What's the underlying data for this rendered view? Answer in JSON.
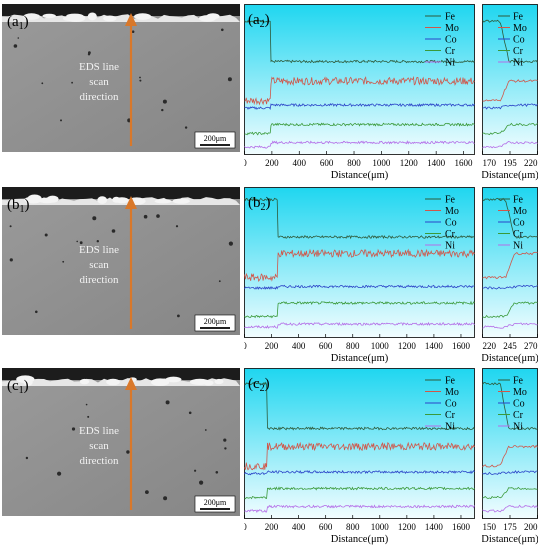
{
  "figure": {
    "colors": {
      "plot_bg_top": "#1fd6f0",
      "plot_bg_bottom": "#f2fdff",
      "sem_gray": "#8f8f8f",
      "arrow": "#d9782a",
      "Fe": "#2e5a3a",
      "Mo": "#d0574a",
      "Co": "#2b44c8",
      "Cr": "#3a9a3a",
      "Ni": "#b46ee8"
    },
    "legend": [
      "Fe",
      "Mo",
      "Co",
      "Cr",
      "Ni"
    ],
    "sem_text": [
      "EDS line",
      "scan",
      "direction"
    ],
    "scalebar_text": "200μm",
    "rows": [
      {
        "sem_label": "a",
        "sem_sub": "1",
        "plot_label": "a",
        "plot_sub": "2",
        "xlabel": "Distance(μm)",
        "main_ticks": [
          "0",
          "200",
          "400",
          "600",
          "800",
          "1000",
          "1200",
          "1400",
          "1600"
        ],
        "zoom_ticks": [
          "170",
          "195",
          "220"
        ]
      },
      {
        "sem_label": "b",
        "sem_sub": "1",
        "plot_label": "b",
        "plot_sub": "2",
        "xlabel": "Distance(μm)",
        "main_ticks": [
          "0",
          "200",
          "400",
          "600",
          "800",
          "1000",
          "1200",
          "1400",
          "1600"
        ],
        "zoom_ticks": [
          "220",
          "245",
          "270"
        ]
      },
      {
        "sem_label": "c",
        "sem_sub": "1",
        "plot_label": "c",
        "plot_sub": "2",
        "xlabel": "Distance(μm)",
        "main_ticks": [
          "0",
          "200",
          "400",
          "600",
          "800",
          "1000",
          "1200",
          "1400",
          "1600"
        ],
        "zoom_ticks": [
          "150",
          "175",
          "200"
        ]
      }
    ]
  },
  "chart_data": [
    {
      "type": "line",
      "panel": "a2",
      "x_range": [
        0,
        1680
      ],
      "step_x": 190,
      "series": [
        {
          "name": "Fe",
          "before": 0.89,
          "after": 0.62
        },
        {
          "name": "Mo",
          "before": 0.36,
          "after": 0.49
        },
        {
          "name": "Co",
          "before": 0.31,
          "after": 0.33
        },
        {
          "name": "Cr",
          "before": 0.14,
          "after": 0.2
        },
        {
          "name": "Ni",
          "before": 0.05,
          "after": 0.08
        }
      ]
    },
    {
      "type": "line",
      "panel": "a2-zoom",
      "x_range": [
        170,
        220
      ],
      "step_x": 190,
      "series": [
        {
          "name": "Fe",
          "before": 0.89,
          "after": 0.62
        },
        {
          "name": "Mo",
          "before": 0.36,
          "after": 0.49
        },
        {
          "name": "Co",
          "before": 0.31,
          "after": 0.33
        },
        {
          "name": "Cr",
          "before": 0.14,
          "after": 0.2
        },
        {
          "name": "Ni",
          "before": 0.05,
          "after": 0.08
        }
      ]
    },
    {
      "type": "line",
      "panel": "b2",
      "x_range": [
        0,
        1700
      ],
      "step_x": 245,
      "series": [
        {
          "name": "Fe",
          "before": 0.92,
          "after": 0.67
        },
        {
          "name": "Mo",
          "before": 0.4,
          "after": 0.56
        },
        {
          "name": "Co",
          "before": 0.33,
          "after": 0.34
        },
        {
          "name": "Cr",
          "before": 0.14,
          "after": 0.23
        },
        {
          "name": "Ni",
          "before": 0.07,
          "after": 0.09
        }
      ]
    },
    {
      "type": "line",
      "panel": "b2-zoom",
      "x_range": [
        220,
        270
      ],
      "step_x": 245,
      "series": [
        {
          "name": "Fe",
          "before": 0.92,
          "after": 0.67
        },
        {
          "name": "Mo",
          "before": 0.4,
          "after": 0.56
        },
        {
          "name": "Co",
          "before": 0.33,
          "after": 0.34
        },
        {
          "name": "Cr",
          "before": 0.14,
          "after": 0.23
        },
        {
          "name": "Ni",
          "before": 0.07,
          "after": 0.09
        }
      ]
    },
    {
      "type": "line",
      "panel": "c2",
      "x_range": [
        0,
        1700
      ],
      "step_x": 170,
      "series": [
        {
          "name": "Fe",
          "before": 0.9,
          "after": 0.6
        },
        {
          "name": "Mo",
          "before": 0.35,
          "after": 0.48
        },
        {
          "name": "Co",
          "before": 0.3,
          "after": 0.31
        },
        {
          "name": "Cr",
          "before": 0.14,
          "after": 0.2
        },
        {
          "name": "Ni",
          "before": 0.05,
          "after": 0.08
        }
      ]
    },
    {
      "type": "line",
      "panel": "c2-zoom",
      "x_range": [
        150,
        200
      ],
      "step_x": 170,
      "series": [
        {
          "name": "Fe",
          "before": 0.9,
          "after": 0.6
        },
        {
          "name": "Mo",
          "before": 0.35,
          "after": 0.48
        },
        {
          "name": "Co",
          "before": 0.3,
          "after": 0.31
        },
        {
          "name": "Cr",
          "before": 0.14,
          "after": 0.2
        },
        {
          "name": "Ni",
          "before": 0.05,
          "after": 0.08
        }
      ]
    }
  ]
}
